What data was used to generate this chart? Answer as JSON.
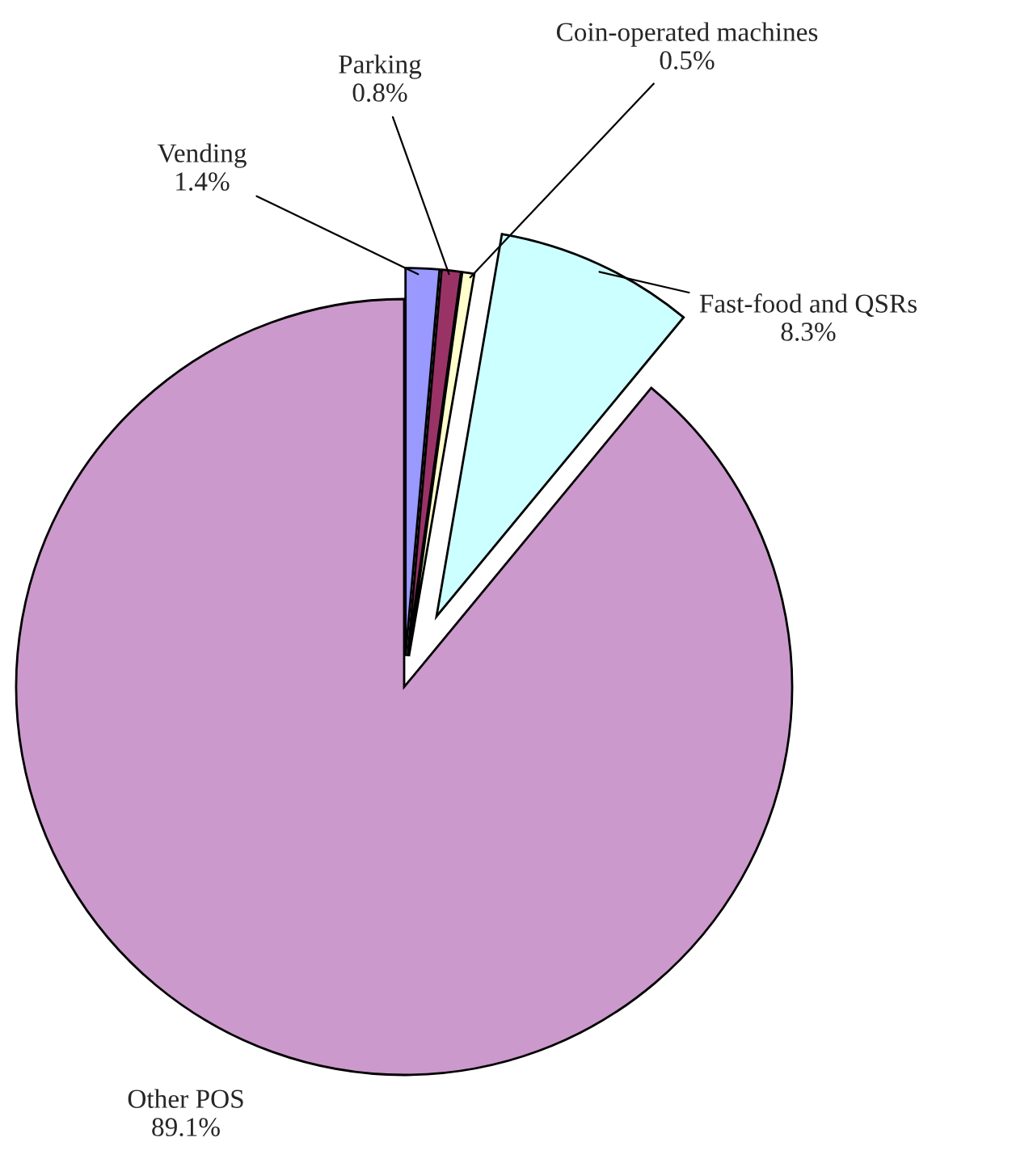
{
  "chart_data": {
    "type": "pie",
    "categories": [
      "Vending",
      "Parking",
      "Coin-operated machines",
      "Fast-food and QSRs",
      "Other POS"
    ],
    "values": [
      1.4,
      0.8,
      0.5,
      8.3,
      89.1
    ],
    "value_labels": [
      "1.4%",
      "0.8%",
      "0.5%",
      "8.3%",
      "89.1%"
    ],
    "colors": [
      "#9999ff",
      "#993366",
      "#ffffcc",
      "#ccffff",
      "#cc99cc"
    ]
  }
}
